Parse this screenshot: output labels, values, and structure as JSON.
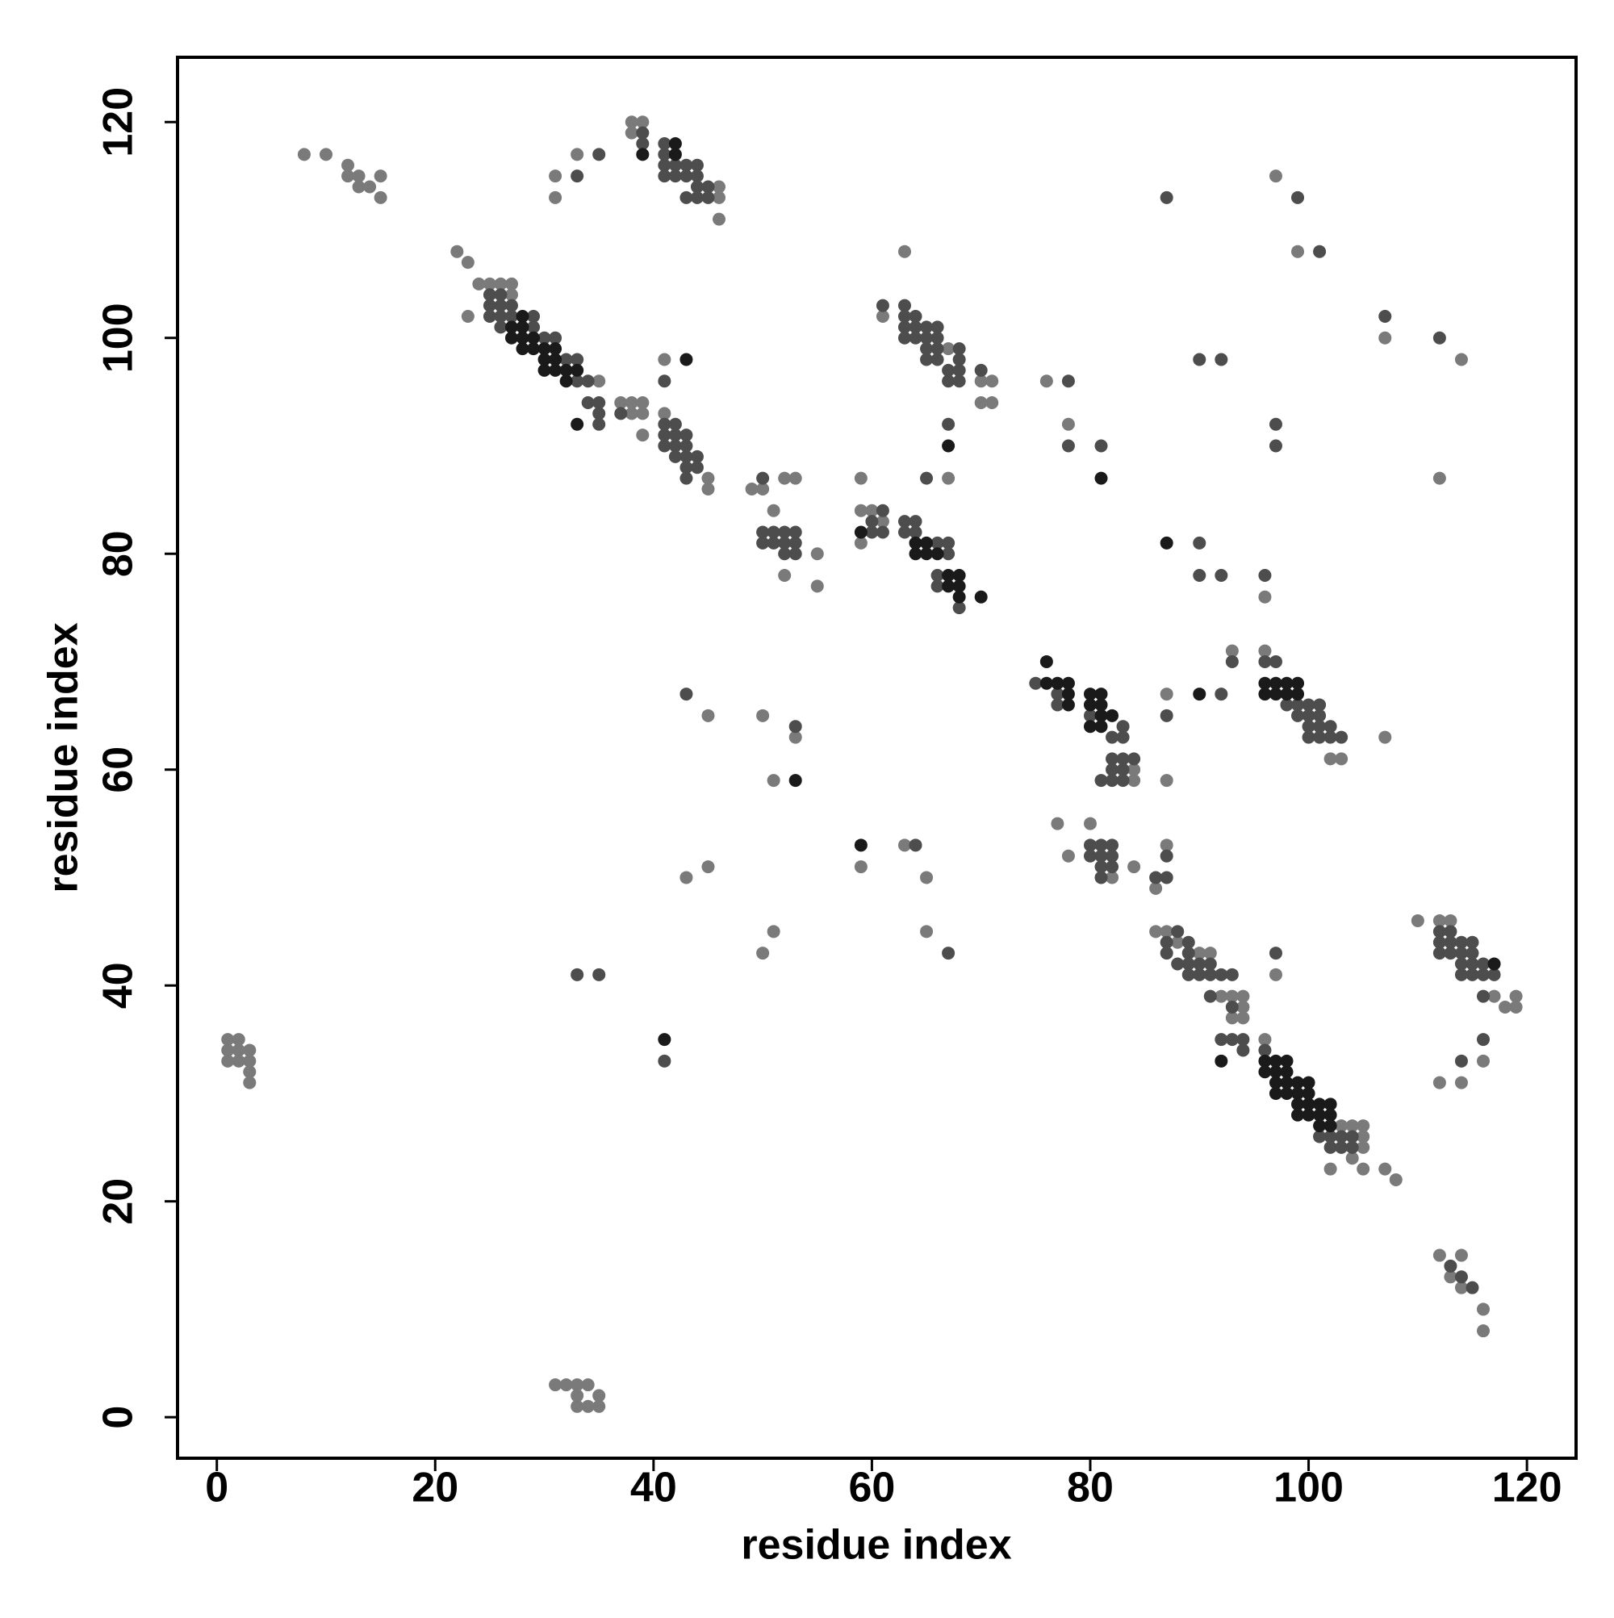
{
  "chart_data": {
    "type": "scatter",
    "xlabel": "residue index",
    "ylabel": "residue index",
    "xlim": [
      -3.6,
      124.5
    ],
    "ylim": [
      -3.8,
      126
    ],
    "xticks": [
      0,
      20,
      40,
      60,
      80,
      100,
      120
    ],
    "yticks": [
      0,
      20,
      40,
      60,
      80,
      100,
      120
    ],
    "grid": false,
    "series": [
      {
        "color": "#7a7a7a",
        "x": [
          8,
          10,
          12,
          12,
          13,
          13,
          14,
          15,
          15,
          31,
          31,
          33,
          38,
          38,
          39,
          46,
          46,
          46,
          22,
          23,
          23,
          24,
          25,
          26,
          27,
          27,
          35,
          37,
          38,
          39,
          38,
          39,
          39,
          41,
          41,
          45,
          45,
          49,
          50,
          51,
          52,
          55,
          55,
          53,
          52,
          59,
          59,
          60,
          59,
          61,
          63,
          61,
          67,
          70,
          71,
          70,
          71,
          67,
          76,
          78,
          99,
          97,
          96,
          107,
          114,
          112,
          107,
          93,
          96,
          87,
          87,
          84,
          84,
          103,
          102,
          45,
          50,
          53,
          51,
          59,
          63,
          65,
          65,
          45,
          43,
          51,
          50,
          77,
          80,
          78,
          87,
          86,
          84,
          82,
          86,
          87,
          88,
          90,
          91,
          92,
          93,
          94,
          94,
          94,
          93,
          97,
          96,
          105,
          105,
          105,
          104,
          105,
          102,
          107,
          108,
          103,
          104,
          110,
          112,
          113,
          116,
          112,
          114,
          119,
          119,
          118,
          117,
          112,
          114,
          113,
          114,
          116,
          116,
          1,
          2,
          1,
          2,
          3,
          1,
          2,
          3,
          3,
          3,
          31,
          32,
          33,
          34,
          33,
          35,
          33,
          34,
          35
        ],
        "y": [
          117,
          117,
          116,
          115,
          115,
          114,
          114,
          115,
          113,
          115,
          113,
          117,
          120,
          119,
          120,
          114,
          113,
          111,
          108,
          107,
          102,
          105,
          105,
          105,
          105,
          104,
          96,
          94,
          94,
          94,
          93,
          93,
          91,
          98,
          93,
          87,
          86,
          86,
          86,
          84,
          78,
          80,
          77,
          87,
          87,
          87,
          84,
          84,
          81,
          83,
          108,
          102,
          99,
          96,
          96,
          94,
          94,
          87,
          96,
          92,
          108,
          115,
          76,
          100,
          98,
          87,
          63,
          71,
          71,
          67,
          59,
          59,
          60,
          61,
          61,
          65,
          65,
          63,
          59,
          51,
          53,
          50,
          45,
          51,
          50,
          45,
          43,
          55,
          55,
          52,
          53,
          49,
          51,
          50,
          45,
          45,
          44,
          43,
          43,
          39,
          39,
          39,
          38,
          37,
          37,
          41,
          35,
          27,
          26,
          25,
          24,
          23,
          23,
          23,
          22,
          27,
          27,
          46,
          46,
          46,
          33,
          31,
          31,
          39,
          38,
          38,
          39,
          15,
          15,
          13,
          12,
          10,
          8,
          35,
          35,
          34,
          34,
          34,
          33,
          33,
          33,
          32,
          31,
          3,
          3,
          3,
          3,
          2,
          2,
          1,
          1,
          1
        ]
      },
      {
        "color": "#4d4d4d",
        "x": [
          33,
          35,
          39,
          39,
          41,
          41,
          41,
          42,
          43,
          44,
          41,
          42,
          43,
          44,
          44,
          45,
          43,
          44,
          45,
          25,
          26,
          25,
          26,
          27,
          25,
          26,
          27,
          26,
          29,
          29,
          30,
          31,
          32,
          33,
          33,
          34,
          34,
          35,
          35,
          37,
          35,
          41,
          41,
          42,
          41,
          42,
          43,
          41,
          42,
          43,
          42,
          43,
          44,
          43,
          44,
          43,
          50,
          50,
          51,
          52,
          53,
          50,
          51,
          52,
          53,
          52,
          53,
          60,
          61,
          61,
          60,
          63,
          64,
          63,
          64,
          66,
          67,
          67,
          66,
          66,
          68,
          61,
          63,
          63,
          64,
          63,
          64,
          65,
          66,
          63,
          64,
          65,
          66,
          65,
          66,
          68,
          65,
          66,
          68,
          67,
          68,
          70,
          67,
          68,
          67,
          65,
          78,
          78,
          81,
          87,
          92,
          90,
          90,
          90,
          92,
          96,
          99,
          101,
          97,
          97,
          107,
          112,
          75,
          77,
          77,
          80,
          83,
          82,
          83,
          82,
          83,
          84,
          82,
          83,
          81,
          82,
          83,
          93,
          96,
          97,
          98,
          99,
          100,
          101,
          99,
          100,
          101,
          100,
          101,
          102,
          100,
          101,
          102,
          103,
          92,
          87,
          43,
          53,
          64,
          67,
          80,
          81,
          82,
          80,
          81,
          82,
          81,
          82,
          81,
          86,
          87,
          87,
          33,
          35,
          41,
          88,
          87,
          89,
          87,
          89,
          88,
          89,
          90,
          91,
          89,
          90,
          91,
          92,
          93,
          91,
          93,
          92,
          93,
          94,
          94,
          97,
          96,
          102,
          103,
          103,
          104,
          104,
          102,
          101,
          112,
          113,
          112,
          113,
          114,
          115,
          112,
          113,
          114,
          115,
          114,
          115,
          116,
          114,
          115,
          116,
          117,
          116,
          116,
          114,
          113,
          114,
          115
        ],
        "y": [
          115,
          117,
          119,
          118,
          118,
          117,
          116,
          116,
          116,
          116,
          115,
          115,
          115,
          115,
          114,
          114,
          113,
          113,
          113,
          104,
          104,
          103,
          103,
          103,
          102,
          102,
          102,
          101,
          102,
          101,
          100,
          100,
          98,
          98,
          96,
          96,
          94,
          94,
          93,
          93,
          92,
          96,
          92,
          92,
          91,
          91,
          91,
          90,
          90,
          90,
          89,
          89,
          89,
          88,
          88,
          87,
          87,
          82,
          82,
          82,
          82,
          81,
          81,
          81,
          81,
          80,
          80,
          83,
          84,
          82,
          82,
          83,
          83,
          82,
          82,
          81,
          81,
          80,
          78,
          77,
          75,
          103,
          103,
          102,
          102,
          101,
          101,
          101,
          101,
          100,
          100,
          100,
          100,
          99,
          99,
          99,
          98,
          98,
          98,
          97,
          97,
          97,
          96,
          96,
          92,
          87,
          96,
          90,
          90,
          113,
          98,
          98,
          81,
          78,
          78,
          78,
          113,
          108,
          92,
          90,
          102,
          100,
          68,
          67,
          66,
          65,
          64,
          63,
          63,
          61,
          61,
          61,
          60,
          60,
          59,
          59,
          59,
          70,
          70,
          70,
          66,
          66,
          66,
          66,
          65,
          65,
          65,
          64,
          64,
          64,
          63,
          63,
          63,
          63,
          67,
          65,
          67,
          64,
          53,
          43,
          53,
          53,
          53,
          52,
          52,
          52,
          51,
          51,
          50,
          50,
          52,
          50,
          41,
          41,
          33,
          45,
          44,
          44,
          43,
          43,
          42,
          42,
          42,
          42,
          41,
          41,
          41,
          41,
          41,
          39,
          38,
          35,
          35,
          35,
          34,
          43,
          34,
          25,
          25,
          26,
          26,
          25,
          26,
          26,
          45,
          45,
          44,
          44,
          44,
          44,
          43,
          43,
          43,
          43,
          42,
          42,
          42,
          41,
          41,
          41,
          41,
          39,
          35,
          33,
          14,
          13,
          12
        ]
      },
      {
        "color": "#1a1a1a",
        "x": [
          42,
          42,
          39,
          27,
          28,
          28,
          27,
          28,
          29,
          28,
          29,
          30,
          31,
          30,
          31,
          30,
          31,
          32,
          33,
          32,
          33,
          43,
          59,
          64,
          65,
          64,
          65,
          66,
          67,
          68,
          67,
          68,
          68,
          70,
          67,
          81,
          87,
          90,
          76,
          76,
          77,
          78,
          78,
          80,
          81,
          78,
          80,
          81,
          81,
          82,
          80,
          81,
          96,
          97,
          98,
          99,
          96,
          97,
          98,
          99,
          59,
          53,
          41,
          92,
          96,
          97,
          98,
          96,
          97,
          98,
          97,
          98,
          99,
          100,
          97,
          98,
          99,
          100,
          99,
          100,
          101,
          102,
          99,
          100,
          101,
          102,
          101,
          102,
          117
        ],
        "y": [
          118,
          117,
          117,
          101,
          101,
          102,
          100,
          100,
          100,
          99,
          99,
          99,
          99,
          98,
          98,
          97,
          97,
          97,
          97,
          96,
          92,
          98,
          82,
          81,
          81,
          80,
          80,
          80,
          78,
          78,
          77,
          77,
          76,
          76,
          90,
          87,
          81,
          67,
          70,
          68,
          68,
          68,
          67,
          67,
          67,
          66,
          66,
          66,
          65,
          65,
          64,
          64,
          68,
          68,
          68,
          68,
          67,
          67,
          67,
          67,
          53,
          59,
          35,
          33,
          33,
          33,
          33,
          32,
          32,
          32,
          31,
          31,
          31,
          31,
          30,
          30,
          30,
          30,
          29,
          29,
          29,
          29,
          28,
          28,
          28,
          28,
          27,
          27,
          42
        ]
      }
    ]
  }
}
